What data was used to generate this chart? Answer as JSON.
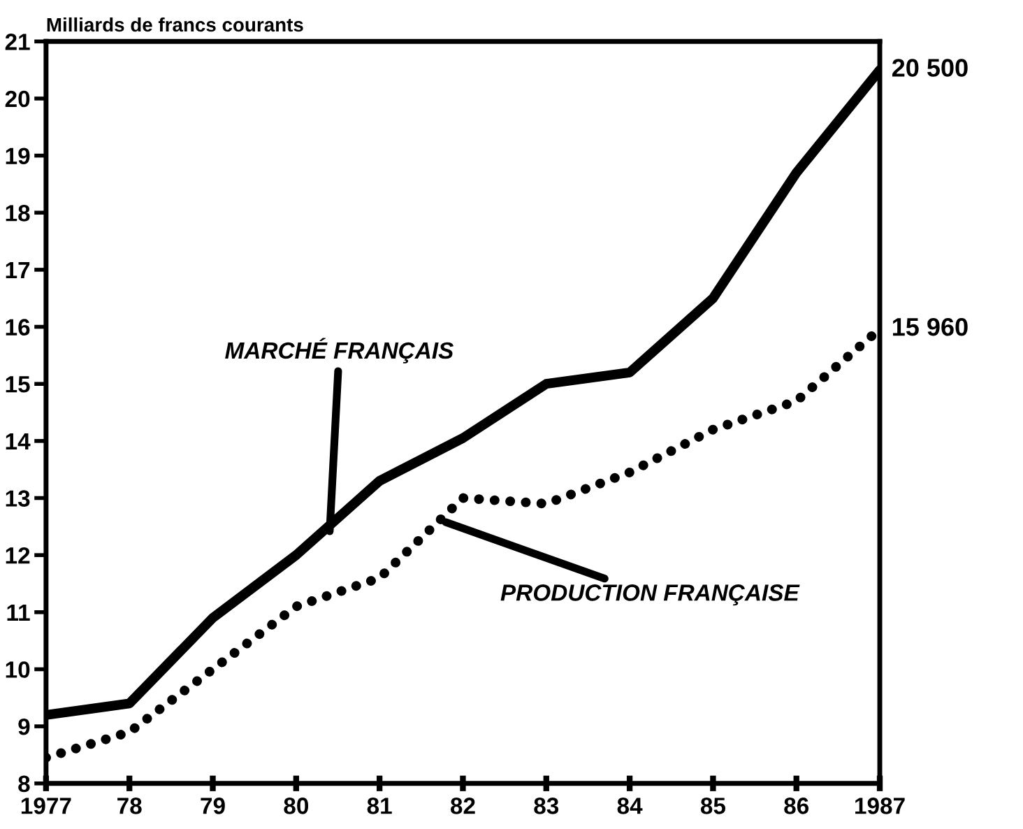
{
  "chart_data": {
    "type": "line",
    "ylabel": "Milliards de francs courants",
    "x": [
      1977,
      1978,
      1979,
      1980,
      1981,
      1982,
      1983,
      1984,
      1985,
      1986,
      1987
    ],
    "series": [
      {
        "color": "#000000",
        "line_style": "solid",
        "values": [
          9.2,
          9.4,
          10.9,
          12.0,
          13.3,
          14.05,
          15.0,
          15.2,
          16.5,
          18.7,
          20.5
        ]
      },
      {
        "color": "#000000",
        "line_style": "dotted",
        "values": [
          8.45,
          8.9,
          10.0,
          11.1,
          11.6,
          13.0,
          12.9,
          13.45,
          14.2,
          14.7,
          15.96
        ]
      }
    ],
    "xlim": [
      1977,
      1987
    ],
    "xticks": [
      {
        "value": 1977,
        "label": "1977"
      },
      {
        "value": 1978,
        "label": "78"
      },
      {
        "value": 1979,
        "label": "79"
      },
      {
        "value": 1980,
        "label": "80"
      },
      {
        "value": 1981,
        "label": "81"
      },
      {
        "value": 1982,
        "label": "82"
      },
      {
        "value": 1983,
        "label": "83"
      },
      {
        "value": 1984,
        "label": "84"
      },
      {
        "value": 1985,
        "label": "85"
      },
      {
        "value": 1986,
        "label": "86"
      },
      {
        "value": 1987,
        "label": "1987"
      }
    ],
    "ylim": [
      8,
      21
    ],
    "yticks": [
      8,
      9,
      10,
      11,
      12,
      13,
      14,
      15,
      16,
      17,
      18,
      19,
      20,
      21
    ],
    "grid": false,
    "legend": false,
    "marker": "none",
    "annotations": [
      {
        "text": "MARCHÉ FRANÇAIS",
        "x": 1980.4,
        "y": 12.35
      },
      {
        "text": "PRODUCTION FRANÇAISE",
        "x": 1981.75,
        "y": 12.6
      },
      {
        "text": "20 500",
        "x": 1987,
        "y": 20.5
      },
      {
        "text": "15 960",
        "x": 1987,
        "y": 15.96
      }
    ]
  }
}
